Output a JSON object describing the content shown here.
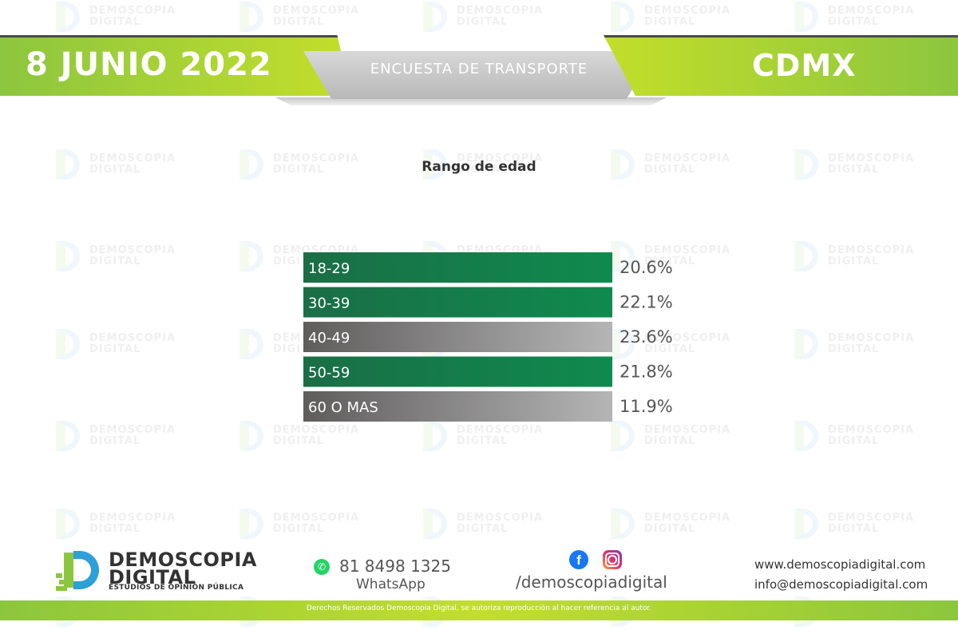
{
  "header": {
    "date": "8 JUNIO 2022",
    "survey_title": "ENCUESTA DE TRANSPORTE",
    "city": "CDMX"
  },
  "watermark": {
    "line1": "DEMOSCOPIA",
    "line2": "DIGITAL"
  },
  "colors": {
    "brand_green": "#8cc63f",
    "brand_lime": "#c3de2a",
    "bar_green": "#157c4a",
    "bar_gray": "#8a8a8a"
  },
  "chart_data": {
    "type": "bar",
    "orientation": "horizontal",
    "title": "Rango de edad",
    "categories": [
      "18-29",
      "30-39",
      "40-49",
      "50-59",
      "60 O MAS"
    ],
    "values": [
      20.6,
      22.1,
      23.6,
      21.8,
      11.9
    ],
    "value_labels": [
      "20.6%",
      "22.1%",
      "23.6%",
      "21.8%",
      "11.9%"
    ],
    "bar_colors": [
      "green",
      "green",
      "gray",
      "green",
      "gray"
    ],
    "grid": false,
    "legend": "none"
  },
  "footer": {
    "brand_line1": "DEMOSCOPIA",
    "brand_line2": "DIGITAL",
    "brand_line3": "ESTUDIOS DE OPINIÓN PÚBLICA",
    "phone": "81 8498 1325",
    "phone_label": "WhatsApp",
    "social_handle": "/demoscopiadigital",
    "website": "www.demoscopiadigital.com",
    "email": "info@demoscopiadigital.com",
    "copyright": "Derechos Reservados Demoscopia Digital, se autoriza reproducción al hacer referencia al autor.",
    "icons": [
      "whatsapp-icon",
      "facebook-icon",
      "instagram-icon"
    ]
  }
}
